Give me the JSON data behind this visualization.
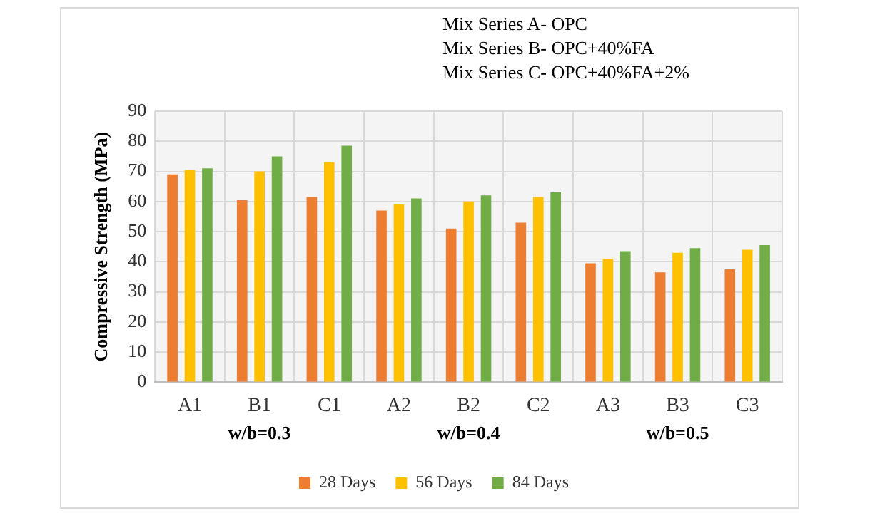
{
  "chart_data": {
    "type": "bar",
    "ylabel": "Compressive Strength (MPa)",
    "categories": [
      "A1",
      "B1",
      "C1",
      "A2",
      "B2",
      "C2",
      "A3",
      "B3",
      "C3"
    ],
    "series": [
      {
        "name": "28 Days",
        "color": "#ed7d31",
        "values": [
          69,
          60.5,
          61.5,
          57,
          51,
          53,
          39.5,
          36.5,
          37.5
        ]
      },
      {
        "name": "56 Days",
        "color": "#ffc000",
        "values": [
          70.5,
          70,
          73,
          59,
          60,
          61.5,
          41,
          43,
          44
        ]
      },
      {
        "name": "84 Days",
        "color": "#70ad47",
        "values": [
          71,
          75,
          78.5,
          61,
          62,
          63,
          43.5,
          44.5,
          45.5
        ]
      }
    ],
    "ylim": [
      0,
      90
    ],
    "yticks": [
      0,
      10,
      20,
      30,
      40,
      50,
      60,
      70,
      80,
      90
    ],
    "grid": true,
    "legend": "bottom",
    "annotations": [
      "Mix Series A- OPC",
      "Mix Series B- OPC+40%FA",
      "Mix Series C- OPC+40%FA+2%",
      "w/b=0.3",
      "w/b=0.4",
      "w/b=0.5"
    ]
  }
}
